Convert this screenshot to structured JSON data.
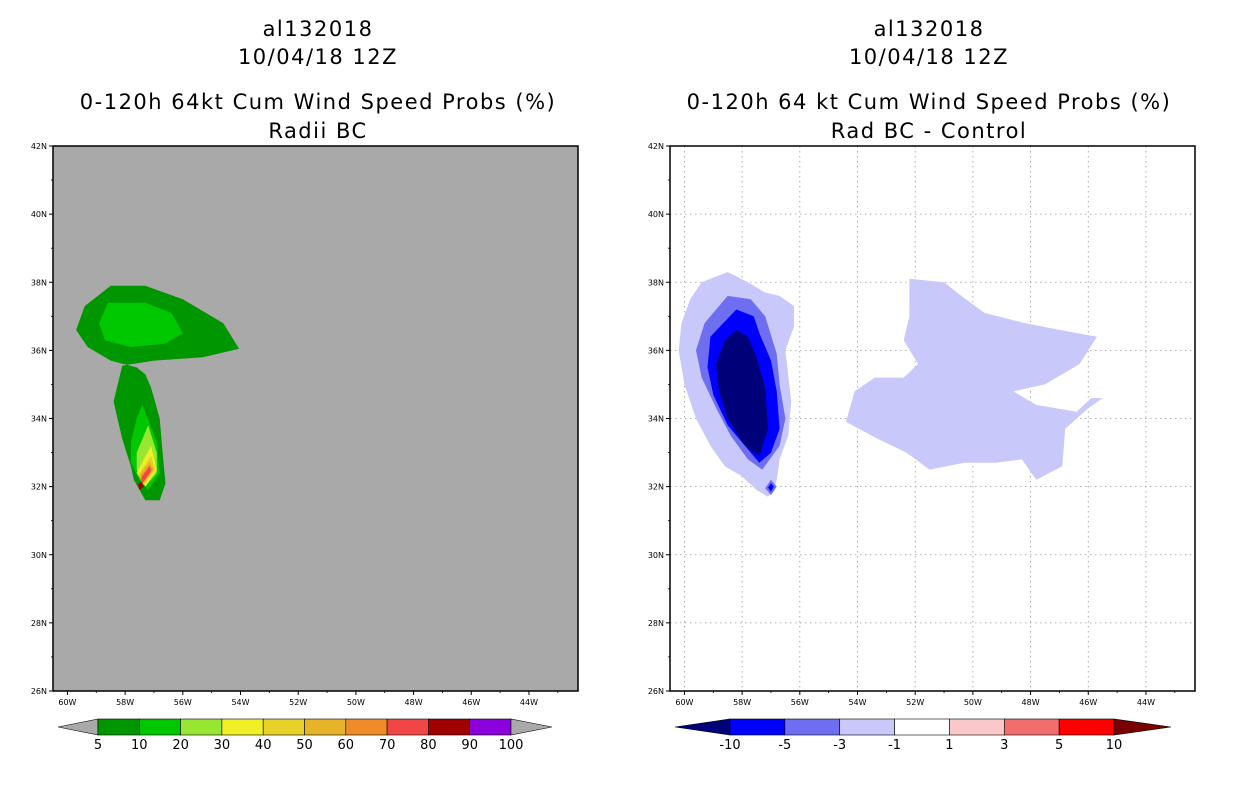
{
  "chart_data": [
    {
      "type": "contour",
      "panel": "left",
      "title_lines": [
        "al132018",
        "10/04/18 12Z",
        "0-120h 64kt Cum Wind Speed Probs (%)",
        "Radii BC"
      ],
      "x_axis": {
        "ticks": [
          -60,
          -58,
          -56,
          -54,
          -52,
          -50,
          -48,
          -46,
          -44
        ],
        "tick_labels": [
          "60W",
          "58W",
          "56W",
          "54W",
          "52W",
          "50W",
          "48W",
          "46W",
          "44W"
        ],
        "range": [
          -60.5,
          -42.3
        ]
      },
      "y_axis": {
        "ticks": [
          26,
          28,
          30,
          32,
          34,
          36,
          38,
          40,
          42
        ],
        "tick_labels": [
          "26N",
          "28N",
          "30N",
          "32N",
          "34N",
          "36N",
          "38N",
          "40N",
          "42N"
        ],
        "range": [
          26,
          42
        ]
      },
      "background_color": "#a9a9a9",
      "grid": false,
      "colorbar": {
        "labels": [
          "5",
          "10",
          "20",
          "30",
          "40",
          "50",
          "60",
          "70",
          "80",
          "90",
          "100"
        ],
        "colors": [
          "#009600",
          "#00c800",
          "#96e632",
          "#f0f028",
          "#e6d228",
          "#e6b428",
          "#f08c28",
          "#f04646",
          "#a00000",
          "#8c00dc"
        ],
        "end_color": "#a9a9a9"
      },
      "contours": [
        {
          "level": "5-10",
          "color": "#009600",
          "points": [
            [
              -58.5,
              37.9
            ],
            [
              -57.3,
              37.9
            ],
            [
              -56,
              37.5
            ],
            [
              -54.6,
              36.8
            ],
            [
              -54.05,
              36.05
            ],
            [
              -55.3,
              35.8
            ],
            [
              -57,
              35.7
            ],
            [
              -58.1,
              35.55
            ],
            [
              -58.4,
              34.5
            ],
            [
              -58.1,
              33.4
            ],
            [
              -57.8,
              32.6
            ],
            [
              -57.7,
              32.2
            ],
            [
              -57.3,
              31.6
            ],
            [
              -56.8,
              31.6
            ],
            [
              -56.6,
              32.1
            ],
            [
              -56.7,
              33
            ],
            [
              -56.8,
              34
            ],
            [
              -57.1,
              34.9
            ],
            [
              -57.3,
              35.3
            ],
            [
              -57.6,
              35.5
            ],
            [
              -58.5,
              35.7
            ],
            [
              -59.3,
              36.1
            ],
            [
              -59.7,
              36.6
            ],
            [
              -59.4,
              37.3
            ]
          ]
        },
        {
          "level": "10-20",
          "color": "#00c800",
          "points": [
            [
              -58.6,
              37.4
            ],
            [
              -57.3,
              37.4
            ],
            [
              -56.4,
              37.1
            ],
            [
              -56,
              36.5
            ],
            [
              -56.6,
              36.2
            ],
            [
              -57.8,
              36.1
            ],
            [
              -58.7,
              36.3
            ],
            [
              -58.9,
              36.8
            ]
          ]
        },
        {
          "level": "10-20",
          "color": "#00c800",
          "points": [
            [
              -57.4,
              34.4
            ],
            [
              -56.9,
              33.3
            ],
            [
              -56.8,
              32.4
            ],
            [
              -57.2,
              31.9
            ],
            [
              -57.5,
              32.2
            ],
            [
              -57.8,
              32.7
            ],
            [
              -57.8,
              33.3
            ],
            [
              -57.6,
              34
            ]
          ]
        },
        {
          "level": "20-30",
          "color": "#96e632",
          "points": [
            [
              -57.2,
              33.8
            ],
            [
              -56.9,
              33
            ],
            [
              -56.9,
              32.4
            ],
            [
              -57.3,
              32
            ],
            [
              -57.6,
              32.5
            ],
            [
              -57.6,
              33
            ]
          ]
        },
        {
          "level": "30-40",
          "color": "#f0f028",
          "points": [
            [
              -57.1,
              33.2
            ],
            [
              -56.9,
              32.5
            ],
            [
              -57.3,
              32
            ],
            [
              -57.6,
              32.4
            ]
          ]
        },
        {
          "level": "40-50",
          "color": "#e6d228",
          "points": [
            [
              -57.1,
              32.9
            ],
            [
              -56.95,
              32.5
            ],
            [
              -57.35,
              32.05
            ],
            [
              -57.55,
              32.35
            ]
          ]
        },
        {
          "level": "50-60",
          "color": "#e6b428",
          "points": [
            [
              -57.15,
              32.75
            ],
            [
              -57,
              32.5
            ],
            [
              -57.35,
              32.1
            ],
            [
              -57.5,
              32.35
            ]
          ]
        },
        {
          "level": "60-70",
          "color": "#f08c28",
          "points": [
            [
              -57.15,
              32.65
            ],
            [
              -57.05,
              32.5
            ],
            [
              -57.35,
              32.15
            ],
            [
              -57.45,
              32.3
            ]
          ]
        },
        {
          "level": "70-80",
          "color": "#f04646",
          "points": [
            [
              -57.15,
              32.6
            ],
            [
              -57.1,
              32.45
            ],
            [
              -57.4,
              32.1
            ],
            [
              -57.45,
              32.25
            ]
          ]
        },
        {
          "level": "80-90",
          "color": "#a00000",
          "points": [
            [
              -57.45,
              32.15
            ],
            [
              -57.35,
              32.0
            ],
            [
              -57.5,
              31.9
            ],
            [
              -57.55,
              32.05
            ]
          ]
        }
      ]
    },
    {
      "type": "contour",
      "panel": "right",
      "title_lines": [
        "al132018",
        "10/04/18 12Z",
        "0-120h 64 kt Cum Wind Speed Probs (%)",
        "Rad BC - Control"
      ],
      "x_axis": {
        "ticks": [
          -60,
          -58,
          -56,
          -54,
          -52,
          -50,
          -48,
          -46,
          -44
        ],
        "tick_labels": [
          "60W",
          "58W",
          "56W",
          "54W",
          "52W",
          "50W",
          "48W",
          "46W",
          "44W"
        ],
        "range": [
          -60.5,
          -42.3
        ]
      },
      "y_axis": {
        "ticks": [
          26,
          28,
          30,
          32,
          34,
          36,
          38,
          40,
          42
        ],
        "tick_labels": [
          "26N",
          "28N",
          "30N",
          "32N",
          "34N",
          "36N",
          "38N",
          "40N",
          "42N"
        ],
        "range": [
          26,
          42
        ]
      },
      "background_color": "#ffffff",
      "grid": true,
      "colorbar": {
        "labels": [
          "-10",
          "-5",
          "-3",
          "-1",
          "1",
          "3",
          "5",
          "10"
        ],
        "colors": [
          "#0000ff",
          "#6e6ef0",
          "#c8c8fa",
          "#ffffff",
          "#fac8c8",
          "#f06e6e",
          "#ff0000"
        ],
        "end_color_left": "#000078",
        "end_color_right": "#780000"
      },
      "contours": [
        {
          "level": "-3 to -1",
          "color": "#c8c8fa",
          "points": [
            [
              -59.4,
              38
            ],
            [
              -58.5,
              38.3
            ],
            [
              -57.8,
              38
            ],
            [
              -57.2,
              37.7
            ],
            [
              -56.7,
              37.6
            ],
            [
              -56.2,
              37.3
            ],
            [
              -56.2,
              36.7
            ],
            [
              -56.5,
              36
            ],
            [
              -56.3,
              34.5
            ],
            [
              -56.4,
              33.5
            ],
            [
              -56.7,
              32.8
            ],
            [
              -56.8,
              32.2
            ],
            [
              -56.9,
              31.9
            ],
            [
              -57.1,
              31.7
            ],
            [
              -57.5,
              31.9
            ],
            [
              -58,
              32.3
            ],
            [
              -58.6,
              32.6
            ],
            [
              -59.1,
              33.2
            ],
            [
              -59.6,
              34
            ],
            [
              -60,
              35
            ],
            [
              -60.2,
              36
            ],
            [
              -60.1,
              36.8
            ],
            [
              -59.8,
              37.5
            ]
          ]
        },
        {
          "level": "-3 to -1",
          "color": "#c8c8fa",
          "points": [
            [
              -52.2,
              38.1
            ],
            [
              -51,
              38
            ],
            [
              -50.4,
              37.6
            ],
            [
              -49.6,
              37.1
            ],
            [
              -48.2,
              36.8
            ],
            [
              -47,
              36.6
            ],
            [
              -45.7,
              36.4
            ],
            [
              -46.3,
              35.6
            ],
            [
              -47.5,
              35
            ],
            [
              -48.6,
              34.8
            ],
            [
              -47.8,
              34.4
            ],
            [
              -46.4,
              34.2
            ],
            [
              -45.9,
              34.6
            ],
            [
              -45.5,
              34.6
            ],
            [
              -46,
              34.3
            ],
            [
              -46.8,
              33.7
            ],
            [
              -46.9,
              32.6
            ],
            [
              -47.8,
              32.2
            ],
            [
              -48.3,
              32.8
            ],
            [
              -49.2,
              32.7
            ],
            [
              -50.3,
              32.7
            ],
            [
              -51.5,
              32.5
            ],
            [
              -52.3,
              33
            ],
            [
              -53.3,
              33.4
            ],
            [
              -54.4,
              33.9
            ],
            [
              -54.1,
              34.8
            ],
            [
              -53.4,
              35.2
            ],
            [
              -52.4,
              35.2
            ],
            [
              -51.9,
              35.6
            ],
            [
              -52.4,
              36.3
            ],
            [
              -52.2,
              37
            ]
          ]
        },
        {
          "level": "-5 to -3",
          "color": "#6e6ef0",
          "points": [
            [
              -58.5,
              37.6
            ],
            [
              -57.7,
              37.5
            ],
            [
              -57.2,
              37
            ],
            [
              -56.8,
              35.9
            ],
            [
              -56.7,
              35
            ],
            [
              -56.5,
              34
            ],
            [
              -56.7,
              33.2
            ],
            [
              -57.3,
              32.5
            ],
            [
              -57.8,
              32.8
            ],
            [
              -58.4,
              33.5
            ],
            [
              -58.9,
              34.3
            ],
            [
              -59.4,
              35.2
            ],
            [
              -59.6,
              36
            ],
            [
              -59.3,
              36.8
            ]
          ]
        },
        {
          "level": "-10 to -5",
          "color": "#0000ff",
          "points": [
            [
              -58.2,
              37.2
            ],
            [
              -57.6,
              37
            ],
            [
              -57.4,
              36.5
            ],
            [
              -57,
              35.7
            ],
            [
              -56.8,
              34.8
            ],
            [
              -56.7,
              33.7
            ],
            [
              -57,
              33
            ],
            [
              -57.4,
              32.7
            ],
            [
              -57.8,
              33.1
            ],
            [
              -58.5,
              33.8
            ],
            [
              -59,
              34.7
            ],
            [
              -59.2,
              35.5
            ],
            [
              -59.1,
              36.4
            ]
          ]
        },
        {
          "level": "< -10",
          "color": "#000078",
          "points": [
            [
              -58.2,
              36.6
            ],
            [
              -57.8,
              36.4
            ],
            [
              -57.5,
              35.8
            ],
            [
              -57.2,
              34.9
            ],
            [
              -57.1,
              33.7
            ],
            [
              -57.4,
              32.9
            ],
            [
              -57.9,
              33.2
            ],
            [
              -58.5,
              34
            ],
            [
              -58.8,
              34.8
            ],
            [
              -58.9,
              35.6
            ],
            [
              -58.6,
              36.3
            ]
          ]
        },
        {
          "level": "-5 to -3",
          "color": "#6e6ef0",
          "points": [
            [
              -57.0,
              32.2
            ],
            [
              -56.8,
              32.0
            ],
            [
              -57.0,
              31.75
            ],
            [
              -57.2,
              31.95
            ]
          ]
        },
        {
          "level": "-10 to -5",
          "color": "#0000ff",
          "points": [
            [
              -57.0,
              32.1
            ],
            [
              -56.9,
              32.0
            ],
            [
              -57.0,
              31.85
            ],
            [
              -57.1,
              31.97
            ]
          ]
        }
      ]
    }
  ]
}
